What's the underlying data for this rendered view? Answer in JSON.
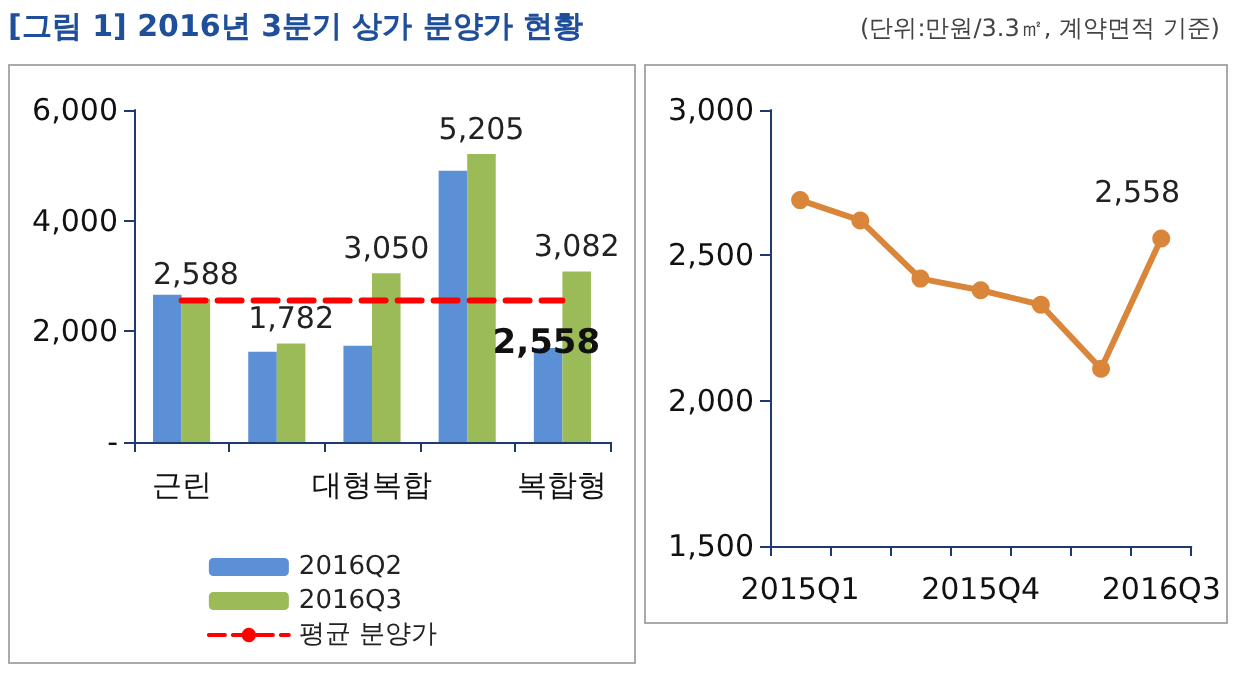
{
  "chart_data": [
    {
      "type": "bar",
      "title": "[그림 1] 2016년 3분기 상가 분양가 현황",
      "categories": [
        "근린",
        null,
        "대형복합",
        null,
        "복합형"
      ],
      "series": [
        {
          "name": "2016Q2",
          "color": "#5b8fd6",
          "values": [
            2660,
            1630,
            1740,
            4900,
            1700
          ]
        },
        {
          "name": "2016Q3",
          "color": "#9bbb59",
          "values": [
            2588,
            1782,
            3050,
            5205,
            3082
          ],
          "value_labels": [
            "2,588",
            "1,782",
            "3,050",
            "5,205",
            "3,082"
          ]
        },
        {
          "name": "평균 분양가",
          "type": "line",
          "color": "#ff0000",
          "line_style": "dashed",
          "marker": "none",
          "values": [
            2558,
            2558,
            2558,
            2558,
            2558
          ],
          "value_labels": [
            null,
            null,
            null,
            null,
            "2,558"
          ]
        }
      ],
      "ylim": [
        0,
        6000
      ],
      "yticks": [
        {
          "value": 0,
          "label": "-"
        },
        {
          "value": 2000,
          "label": "2,000"
        },
        {
          "value": 4000,
          "label": "4,000"
        },
        {
          "value": 6000,
          "label": "6,000"
        }
      ],
      "grid": false,
      "legend": "bottom"
    },
    {
      "type": "line",
      "subtitle": "(단위:만원/3.3㎡, 계약면적 기준)",
      "categories": [
        "2015Q1",
        null,
        null,
        "2015Q4",
        null,
        null,
        "2016Q3"
      ],
      "series": [
        {
          "color": "#d9863a",
          "marker": "circle",
          "values": [
            2690,
            2620,
            2420,
            2380,
            2330,
            2110,
            2558
          ],
          "value_labels": [
            null,
            null,
            null,
            null,
            null,
            null,
            "2,558"
          ]
        }
      ],
      "ylim": [
        1500,
        3000
      ],
      "yticks": [
        {
          "value": 1500,
          "label": "1,500"
        },
        {
          "value": 2000,
          "label": "2,000"
        },
        {
          "value": 2500,
          "label": "2,500"
        },
        {
          "value": 3000,
          "label": "3,000"
        }
      ],
      "grid": false
    }
  ]
}
